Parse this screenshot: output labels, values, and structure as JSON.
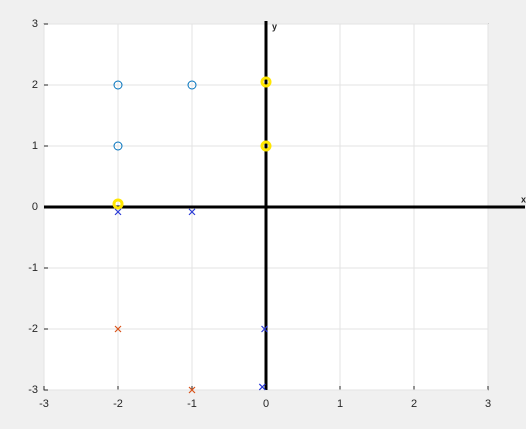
{
  "chart_data": {
    "type": "scatter",
    "xlim": [
      -3,
      3
    ],
    "ylim": [
      -3,
      3
    ],
    "xticks": [
      -3,
      -2,
      -1,
      0,
      1,
      2,
      3
    ],
    "yticks": [
      -3,
      -2,
      -1,
      0,
      1,
      2,
      3
    ],
    "grid": true,
    "series": [
      {
        "marker": "line",
        "color": "#000000",
        "x": [
          -3,
          3.5
        ],
        "y": [
          0,
          0
        ]
      },
      {
        "marker": "line",
        "color": "#000000",
        "x": [
          0,
          0
        ],
        "y": [
          -3,
          3.05
        ]
      },
      {
        "marker": "o",
        "color": "#0072bd",
        "x": [
          -2,
          -1,
          -2
        ],
        "y": [
          2,
          2,
          1
        ]
      },
      {
        "marker": "O",
        "color": "#ffe600",
        "x": [
          0,
          0,
          -2
        ],
        "y": [
          2.05,
          1,
          0.05
        ]
      },
      {
        "marker": "x",
        "color": "#2b3bd6",
        "x": [
          -2,
          -1,
          -0.02,
          -0.05
        ],
        "y": [
          -0.08,
          -0.08,
          -2,
          -2.95
        ]
      },
      {
        "marker": "x",
        "color": "#d95319",
        "x": [
          -2,
          -1
        ],
        "y": [
          -2,
          -3
        ]
      }
    ],
    "annotations": [
      "x",
      "y"
    ]
  }
}
